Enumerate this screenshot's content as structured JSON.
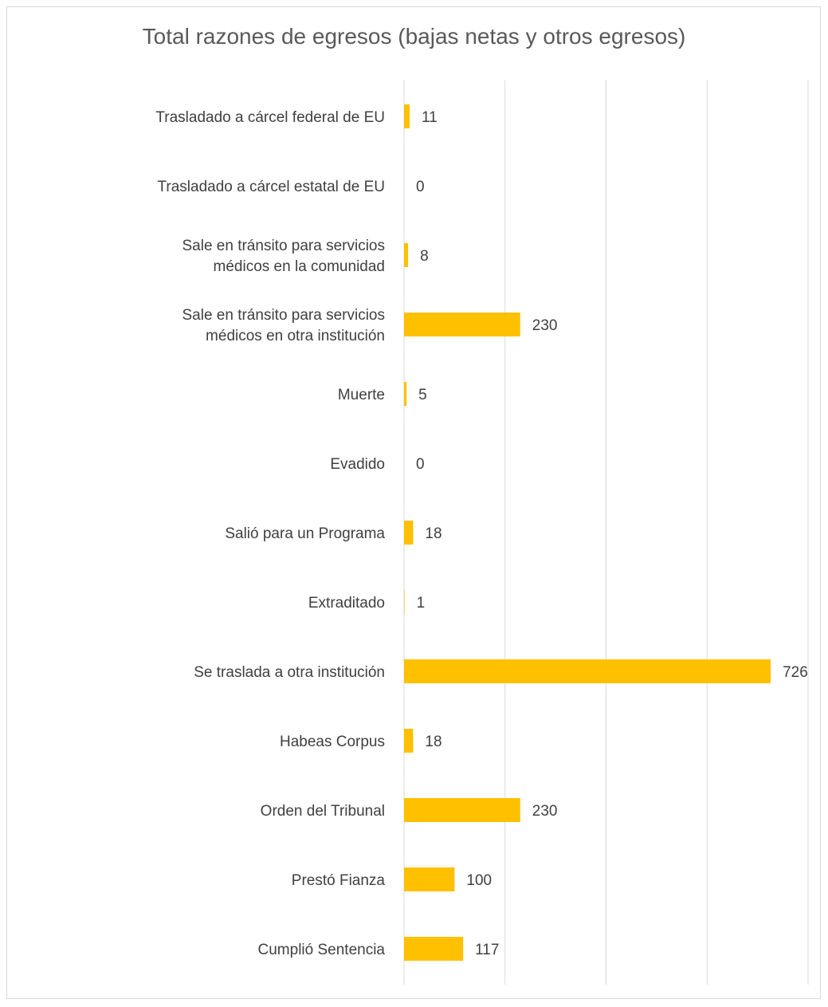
{
  "chart_data": {
    "type": "bar",
    "orientation": "horizontal",
    "title": "Total razones de egresos (bajas netas y otros egresos)",
    "categories": [
      "Trasladado a cárcel federal de EU",
      "Trasladado a cárcel estatal de EU",
      "Sale en tránsito para servicios médicos en la comunidad",
      "Sale en tránsito para servicios médicos en otra institución",
      "Muerte",
      "Evadido",
      "Salió para un Programa",
      "Extraditado",
      "Se traslada a otra institución",
      "Habeas Corpus",
      "Orden del Tribunal",
      "Prestó Fianza",
      "Cumplió Sentencia"
    ],
    "values": [
      11,
      0,
      8,
      230,
      5,
      0,
      18,
      1,
      726,
      18,
      230,
      100,
      117
    ],
    "xlim": [
      0,
      800
    ],
    "grid": "vertical",
    "data_labels": true,
    "bar_color": "#FFC000",
    "grid_color": "#d9d9d9"
  }
}
